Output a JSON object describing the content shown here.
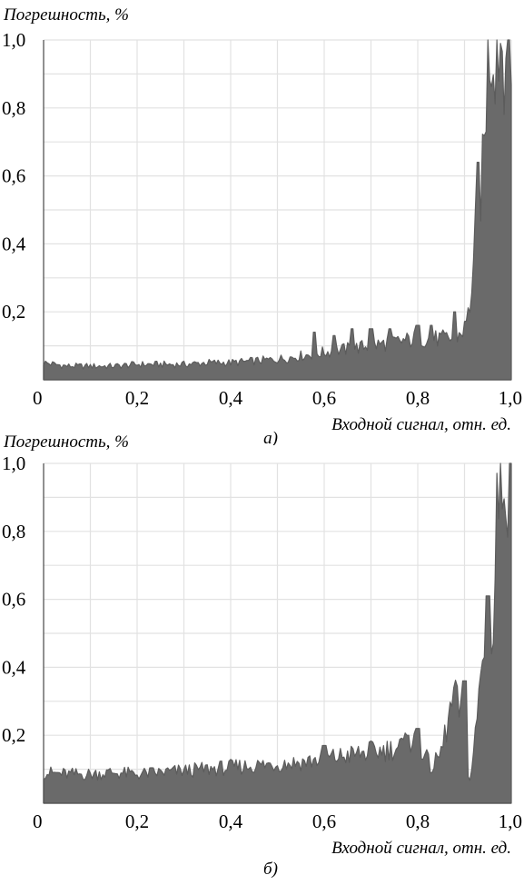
{
  "charts": [
    {
      "id": "a",
      "sublabel": "а)",
      "chart_data": {
        "type": "area",
        "title": "",
        "ylabel": "Погрешность, %",
        "xlabel": "Входной сигнал, отн. ед.",
        "xlim": [
          0,
          1.0
        ],
        "ylim": [
          0,
          1.0
        ],
        "x_ticks": [
          "0",
          "0,2",
          "0,4",
          "0,6",
          "0,8",
          "1,0"
        ],
        "y_ticks": [
          "0,2",
          "0,4",
          "0,6",
          "0,8",
          "1,0"
        ],
        "grid": true,
        "x": [
          0.0,
          0.05,
          0.1,
          0.15,
          0.2,
          0.25,
          0.3,
          0.35,
          0.4,
          0.45,
          0.5,
          0.55,
          0.6,
          0.65,
          0.7,
          0.75,
          0.8,
          0.85,
          0.88,
          0.9,
          0.91,
          0.92,
          0.93,
          0.94,
          0.95,
          0.96,
          0.98,
          1.0
        ],
        "values": [
          0.05,
          0.04,
          0.04,
          0.04,
          0.045,
          0.045,
          0.045,
          0.05,
          0.05,
          0.055,
          0.06,
          0.07,
          0.08,
          0.09,
          0.1,
          0.11,
          0.12,
          0.12,
          0.12,
          0.15,
          0.2,
          0.35,
          0.55,
          0.6,
          1.0,
          1.0,
          1.0,
          1.0
        ],
        "spikes": [
          [
            0.58,
            0.14
          ],
          [
            0.62,
            0.13
          ],
          [
            0.66,
            0.15
          ],
          [
            0.7,
            0.15
          ],
          [
            0.74,
            0.15
          ],
          [
            0.8,
            0.16
          ],
          [
            0.83,
            0.16
          ],
          [
            0.88,
            0.2
          ],
          [
            0.93,
            0.64
          ]
        ]
      }
    },
    {
      "id": "b",
      "sublabel": "б)",
      "chart_data": {
        "type": "area",
        "title": "",
        "ylabel": "Погрешность, %",
        "xlabel": "Входной сигнал, отн. ед.",
        "xlim": [
          0,
          1.0
        ],
        "ylim": [
          0,
          1.0
        ],
        "x_ticks": [
          "0",
          "0,2",
          "0,4",
          "0,6",
          "0,8",
          "1,0"
        ],
        "y_ticks": [
          "0,2",
          "0,4",
          "0,6",
          "0,8",
          "1,0"
        ],
        "grid": true,
        "x": [
          0.0,
          0.05,
          0.1,
          0.15,
          0.2,
          0.25,
          0.3,
          0.35,
          0.4,
          0.45,
          0.5,
          0.55,
          0.6,
          0.65,
          0.7,
          0.75,
          0.8,
          0.83,
          0.85,
          0.87,
          0.88,
          0.9,
          0.91,
          0.92,
          0.93,
          0.94,
          0.95,
          0.96,
          0.97,
          0.98,
          1.0
        ],
        "values": [
          0.09,
          0.085,
          0.085,
          0.09,
          0.085,
          0.09,
          0.095,
          0.1,
          0.105,
          0.11,
          0.115,
          0.12,
          0.13,
          0.14,
          0.15,
          0.16,
          0.18,
          0.1,
          0.15,
          0.27,
          0.3,
          0.25,
          0.05,
          0.15,
          0.3,
          0.45,
          0.55,
          0.4,
          0.9,
          1.0,
          1.0
        ],
        "spikes": [
          [
            0.6,
            0.17
          ],
          [
            0.7,
            0.18
          ],
          [
            0.78,
            0.2
          ],
          [
            0.8,
            0.22
          ],
          [
            0.88,
            0.34
          ],
          [
            0.9,
            0.36
          ],
          [
            0.95,
            0.61
          ]
        ]
      }
    }
  ]
}
